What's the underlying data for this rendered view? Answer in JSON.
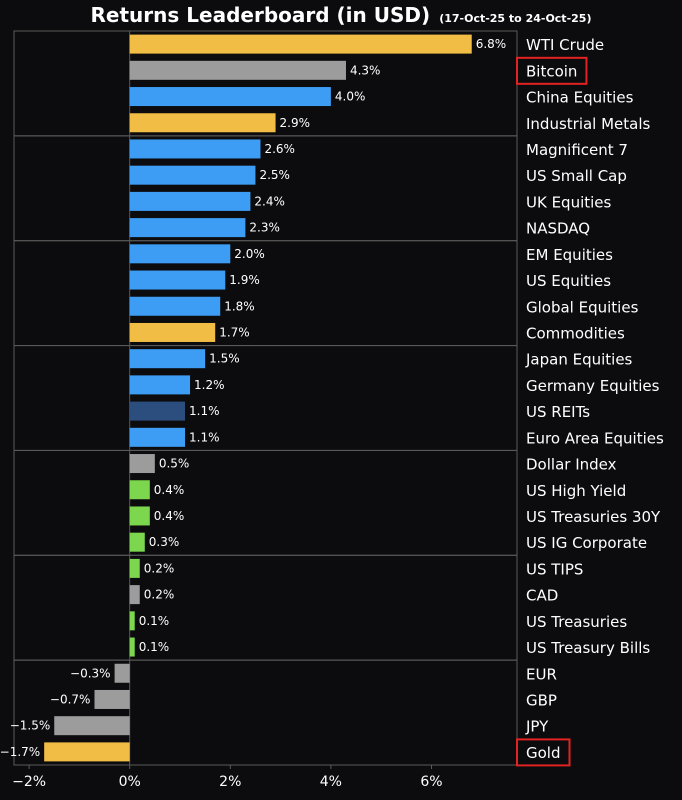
{
  "title": "Returns Leaderboard (in USD)",
  "subtitle": "(17-Oct-25 to 24-Oct-25)",
  "colors": {
    "background": "#0c0c0e",
    "gold": "#f2bd45",
    "grey": "#9c9c9c",
    "blue": "#3d9df4",
    "dark_blue": "#2b4e7e",
    "green": "#7cd74e",
    "highlight": "#e32222",
    "frame": "#5a5a5a"
  },
  "chart_data": {
    "type": "bar",
    "orientation": "horizontal",
    "title": "Returns Leaderboard (in USD)",
    "subtitle": "(17-Oct-25 to 24-Oct-25)",
    "unit": "%",
    "xlim": [
      -2.3,
      7.7
    ],
    "xticks": [
      -2,
      0,
      2,
      4,
      6
    ],
    "xtick_labels": [
      "−2%",
      "0%",
      "2%",
      "4%",
      "6%"
    ],
    "groups_of": 4,
    "highlighted": [
      "Bitcoin",
      "Gold"
    ],
    "categories": [
      "WTI Crude",
      "Bitcoin",
      "China Equities",
      "Industrial Metals",
      "Magnificent 7",
      "US Small Cap",
      "UK Equities",
      "NASDAQ",
      "EM Equities",
      "US Equities",
      "Global Equities",
      "Commodities",
      "Japan Equities",
      "Germany Equities",
      "US REITs",
      "Euro Area Equities",
      "Dollar Index",
      "US High Yield",
      "US Treasuries 30Y",
      "US IG Corporate",
      "US TIPS",
      "CAD",
      "US Treasuries",
      "US Treasury Bills",
      "EUR",
      "GBP",
      "JPY",
      "Gold"
    ],
    "values": [
      6.8,
      4.3,
      4.0,
      2.9,
      2.6,
      2.5,
      2.4,
      2.3,
      2.0,
      1.9,
      1.8,
      1.7,
      1.5,
      1.2,
      1.1,
      1.1,
      0.5,
      0.4,
      0.4,
      0.3,
      0.2,
      0.2,
      0.1,
      0.1,
      -0.3,
      -0.7,
      -1.5,
      -1.7
    ],
    "value_labels": [
      "6.8%",
      "4.3%",
      "4.0%",
      "2.9%",
      "2.6%",
      "2.5%",
      "2.4%",
      "2.3%",
      "2.0%",
      "1.9%",
      "1.8%",
      "1.7%",
      "1.5%",
      "1.2%",
      "1.1%",
      "1.1%",
      "0.5%",
      "0.4%",
      "0.4%",
      "0.3%",
      "0.2%",
      "0.2%",
      "0.1%",
      "0.1%",
      "−0.3%",
      "−0.7%",
      "−1.5%",
      "−1.7%"
    ],
    "bar_colors": [
      "gold",
      "grey",
      "blue",
      "gold",
      "blue",
      "blue",
      "blue",
      "blue",
      "blue",
      "blue",
      "blue",
      "gold",
      "blue",
      "blue",
      "dark_blue",
      "blue",
      "grey",
      "green",
      "green",
      "green",
      "green",
      "grey",
      "green",
      "green",
      "grey",
      "grey",
      "grey",
      "gold"
    ]
  }
}
